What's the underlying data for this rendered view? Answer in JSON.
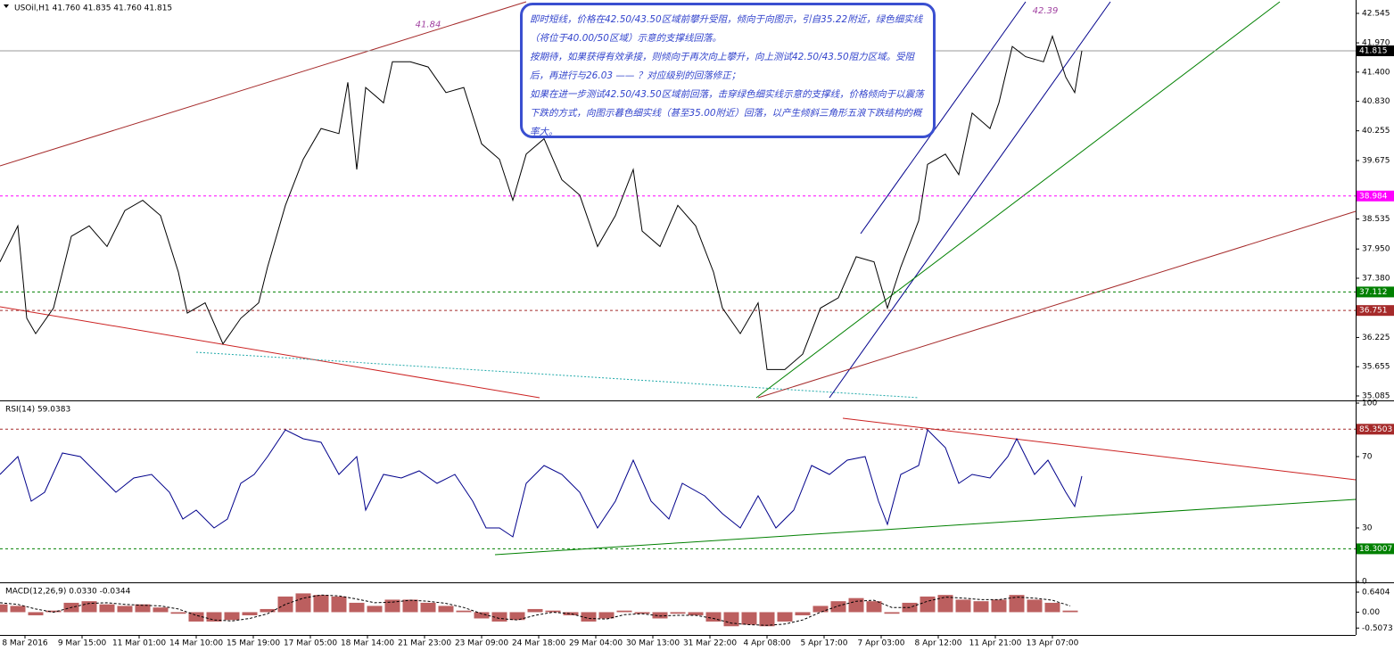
{
  "chart_data": [
    {
      "type": "line",
      "title": "USOil,H1  41.760 41.835 41.760 41.815",
      "color": "#000000",
      "x": [
        0,
        5,
        7.5,
        10,
        15,
        20,
        25,
        30,
        35,
        40,
        45,
        50,
        52.5,
        57.5,
        62.5,
        67.5,
        72.5,
        75,
        80,
        85,
        90,
        95,
        97.5,
        100,
        102.5,
        107.5,
        110,
        115,
        120,
        125,
        130,
        135,
        140,
        143.75,
        147.5,
        152.5,
        157.5,
        162.5,
        167.5,
        172.5,
        177.5,
        180,
        185,
        190,
        195,
        200,
        202.5,
        207.5,
        212.5,
        215,
        220,
        225,
        230,
        235,
        240,
        245,
        248.75,
        252.5,
        257.5,
        260,
        265,
        268.75,
        272.5,
        277.5,
        280,
        283.75,
        287.5,
        292.5,
        295,
        298.75,
        301.25,
        303.25
      ],
      "values": [
        37.7,
        38.4,
        36.6,
        36.3,
        36.8,
        38.2,
        38.4,
        38.0,
        38.7,
        38.9,
        38.6,
        37.5,
        36.7,
        36.9,
        36.1,
        36.6,
        36.9,
        37.6,
        38.8,
        39.7,
        40.3,
        40.2,
        41.2,
        39.5,
        41.1,
        40.8,
        41.6,
        41.6,
        41.5,
        41.0,
        41.1,
        40.0,
        39.7,
        38.9,
        39.8,
        40.1,
        39.3,
        39.0,
        38.0,
        38.6,
        39.5,
        38.3,
        38.0,
        38.8,
        38.4,
        37.5,
        36.8,
        36.3,
        36.9,
        35.6,
        35.6,
        35.9,
        36.8,
        37.0,
        37.8,
        37.7,
        36.8,
        37.6,
        38.5,
        39.6,
        39.8,
        39.4,
        40.6,
        40.3,
        40.8,
        41.9,
        41.7,
        41.6,
        42.1,
        41.3,
        41.0,
        41.815
      ],
      "xlim": [
        0,
        380
      ],
      "ylim": [
        35.015,
        42.771
      ],
      "yticks": [
        42.545,
        {
          "value": 41.97,
          "label": "41.970"
        },
        {
          "value": 41.4,
          "label": "41.400"
        },
        {
          "value": 40.83,
          "label": "40.830"
        },
        40.255,
        39.675,
        38.535,
        {
          "value": 37.95,
          "label": "37.950"
        },
        {
          "value": 37.38,
          "label": "37.380"
        },
        36.225,
        35.655,
        35.085
      ],
      "levels": [
        {
          "value": 41.815,
          "color": "#000000"
        },
        {
          "value": 38.984,
          "color": "#ff00ff"
        },
        {
          "value": 37.112,
          "color": "#008000"
        },
        {
          "value": 36.751,
          "color": "#a52a2a"
        }
      ],
      "annotations": [
        {
          "x": 120,
          "value": 41.84
        },
        {
          "x": 293,
          "value": 42.39
        }
      ]
    },
    {
      "type": "line",
      "title": "RSI(14) 59.0383",
      "color": "#00008b",
      "x": [
        0,
        5,
        8.75,
        12.5,
        17.5,
        22.5,
        27.5,
        32.5,
        37.5,
        42.5,
        47.5,
        51.25,
        55,
        60,
        63.75,
        67.5,
        71.25,
        75,
        80,
        85,
        90,
        95,
        100,
        102.5,
        107.5,
        112.5,
        117.5,
        122.5,
        127.5,
        132.5,
        136.25,
        140,
        143.75,
        147.5,
        152.5,
        157.5,
        162.5,
        167.5,
        172.5,
        177.5,
        182.5,
        187.5,
        191.25,
        197.5,
        202.5,
        207.5,
        212.5,
        217.5,
        222.5,
        227.5,
        232.5,
        237.5,
        242.5,
        246.25,
        248.75,
        252.5,
        257.5,
        260,
        265,
        268.75,
        272.5,
        277.5,
        282.5,
        285,
        290,
        293.75,
        298.75,
        301.25,
        303.25
      ],
      "values": [
        60,
        70,
        45,
        50,
        72,
        70,
        60,
        50,
        58,
        60,
        50,
        35,
        40,
        30,
        35,
        55,
        60,
        70,
        85,
        80,
        78,
        60,
        70,
        40,
        60,
        58,
        62,
        55,
        60,
        45,
        30,
        30,
        25,
        55,
        65,
        60,
        50,
        30,
        45,
        68,
        45,
        35,
        55,
        48,
        38,
        30,
        48,
        30,
        40,
        65,
        60,
        68,
        70,
        45,
        32,
        60,
        65,
        85,
        75,
        55,
        60,
        58,
        70,
        80,
        60,
        68,
        50,
        42,
        59.04
      ],
      "xlim": [
        0,
        380
      ],
      "ylim": [
        0,
        100
      ],
      "yticks": [
        0,
        30,
        70,
        100
      ],
      "levels": [
        {
          "value": 85.3503,
          "color": "#a52a2a"
        },
        {
          "value": 18.3007,
          "color": "#008000"
        }
      ]
    },
    {
      "type": "bar",
      "title": "MACD(12,26,9) 0.0330 -0.0344",
      "x": [
        0,
        5,
        10,
        15,
        20,
        25,
        30,
        35,
        40,
        45,
        50,
        55,
        60,
        65,
        70,
        75,
        80,
        85,
        90,
        95,
        100,
        105,
        110,
        115,
        120,
        125,
        130,
        135,
        140,
        145,
        150,
        155,
        160,
        165,
        170,
        175,
        180,
        185,
        190,
        195,
        200,
        205,
        210,
        215,
        220,
        225,
        230,
        235,
        240,
        245,
        250,
        255,
        260,
        265,
        270,
        275,
        280,
        285,
        290,
        295,
        300
      ],
      "series": [
        {
          "type": "bar",
          "color": "#a52a2a",
          "values": [
            0.25,
            0.2,
            -0.1,
            0.05,
            0.3,
            0.35,
            0.25,
            0.2,
            0.25,
            0.15,
            -0.05,
            -0.3,
            -0.3,
            -0.25,
            -0.1,
            0.1,
            0.5,
            0.6,
            0.55,
            0.5,
            0.3,
            0.2,
            0.4,
            0.4,
            0.3,
            0.2,
            0.05,
            -0.2,
            -0.3,
            -0.25,
            0.1,
            0.05,
            -0.1,
            -0.3,
            -0.2,
            0.05,
            -0.05,
            -0.2,
            -0.05,
            -0.1,
            -0.3,
            -0.45,
            -0.4,
            -0.45,
            -0.3,
            -0.1,
            0.2,
            0.35,
            0.45,
            0.35,
            -0.05,
            0.3,
            0.5,
            0.55,
            0.4,
            0.35,
            0.4,
            0.55,
            0.4,
            0.3,
            0.05
          ]
        },
        {
          "type": "line",
          "color": "#000000",
          "dash": true,
          "values": [
            0.3,
            0.25,
            0.1,
            0.0,
            0.15,
            0.28,
            0.3,
            0.25,
            0.22,
            0.2,
            0.1,
            -0.1,
            -0.25,
            -0.28,
            -0.2,
            -0.05,
            0.25,
            0.45,
            0.55,
            0.52,
            0.42,
            0.3,
            0.32,
            0.38,
            0.35,
            0.28,
            0.15,
            -0.05,
            -0.2,
            -0.25,
            -0.1,
            0.0,
            -0.05,
            -0.2,
            -0.22,
            -0.08,
            -0.05,
            -0.12,
            -0.1,
            -0.1,
            -0.2,
            -0.35,
            -0.4,
            -0.42,
            -0.38,
            -0.25,
            0.0,
            0.2,
            0.35,
            0.38,
            0.15,
            0.15,
            0.35,
            0.48,
            0.45,
            0.4,
            0.4,
            0.48,
            0.45,
            0.38,
            0.2
          ]
        }
      ],
      "xlim": [
        0,
        380
      ],
      "ylim": [
        -0.728,
        0.868
      ],
      "yticks": [
        0.6404,
        {
          "value": 0,
          "label": "0.00"
        },
        -0.5073
      ],
      "xticks": [
        {
          "value": 7,
          "label": "8 Mar 2016"
        },
        {
          "value": 23,
          "label": "9 Mar 15:00"
        },
        {
          "value": 39,
          "label": "11 Mar 01:00"
        },
        {
          "value": 55,
          "label": "14 Mar 10:00"
        },
        {
          "value": 71,
          "label": "15 Mar 19:00"
        },
        {
          "value": 87,
          "label": "17 Mar 05:00"
        },
        {
          "value": 103,
          "label": "18 Mar 14:00"
        },
        {
          "value": 119,
          "label": "21 Mar 23:00"
        },
        {
          "value": 135,
          "label": "23 Mar 09:00"
        },
        {
          "value": 151,
          "label": "24 Mar 18:00"
        },
        {
          "value": 167,
          "label": "29 Mar 04:00"
        },
        {
          "value": 183,
          "label": "30 Mar 13:00"
        },
        {
          "value": 199,
          "label": "31 Mar 22:00"
        },
        {
          "value": 215,
          "label": "4 Apr 08:00"
        },
        {
          "value": 231,
          "label": "5 Apr 17:00"
        },
        {
          "value": 247,
          "label": "7 Apr 03:00"
        },
        {
          "value": 263,
          "label": "8 Apr 12:00"
        },
        {
          "value": 279,
          "label": "11 Apr 21:00"
        },
        {
          "value": 295,
          "label": "13 Apr 07:00"
        }
      ]
    }
  ],
  "note": [
    "即时短线，价格在42.50/43.50区域前攀升受阻，倾向于向图示，引自35.22附近，绿色细实线（将位于40.00/50区域）示意的支撑线回落。",
    "按期待，如果获得有效承接，则倾向于再次向上攀升，向上测试42.50/43.50阻力区域。受阻后，再进行与26.03 —— ？对应级别的回落修正；",
    "如果在进一步测试42.50/43.50区域前回落，击穿绿色细实线示意的支撑线，价格倾向于以震荡下跌的方式，向图示暮色细实线（甚至35.00附近）回落，以产生倾斜三角形五浪下跌结构的概率大。"
  ]
}
